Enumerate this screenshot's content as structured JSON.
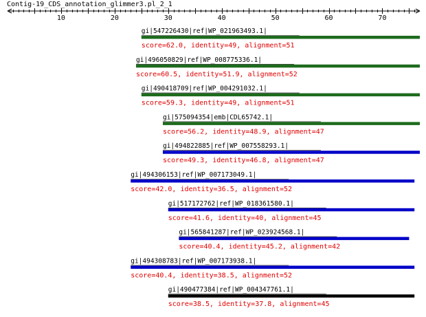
{
  "title": "Contig-19_CDS_annotation_glimmer3.pl_2_1",
  "axis": {
    "min": 0,
    "max": 77,
    "labeled_ticks": [
      10,
      20,
      30,
      40,
      50,
      60,
      70
    ],
    "minor_step": 1
  },
  "colors": {
    "score_text": "#e00000",
    "green": "#1d6b1d",
    "blue": "#0000c8",
    "black": "#000000"
  },
  "hits": [
    {
      "label": "gi|547226430|ref|WP_021963493.1|",
      "score": "score=62.0, identity=49, alignment=51",
      "start": 25,
      "end": 77,
      "color": "green"
    },
    {
      "label": "gi|496050829|ref|WP_008775336.1|",
      "score": "score=60.5, identity=51.9, alignment=52",
      "start": 24,
      "end": 77,
      "color": "green"
    },
    {
      "label": "gi|490418709|ref|WP_004291032.1|",
      "score": "score=59.3, identity=49, alignment=51",
      "start": 25,
      "end": 77,
      "color": "green"
    },
    {
      "label": "gi|575094354|emb|CDL65742.1|",
      "score": "score=56.2, identity=48.9, alignment=47",
      "start": 29,
      "end": 77,
      "color": "green"
    },
    {
      "label": "gi|494822885|ref|WP_007558293.1|",
      "score": "score=49.3, identity=46.8, alignment=47",
      "start": 29,
      "end": 77,
      "color": "blue"
    },
    {
      "label": "gi|494306153|ref|WP_007173049.1|",
      "score": "score=42.0, identity=36.5, alignment=52",
      "start": 23,
      "end": 76,
      "color": "blue"
    },
    {
      "label": "gi|517172762|ref|WP_018361580.1|",
      "score": "score=41.6, identity=40, alignment=45",
      "start": 30,
      "end": 76,
      "color": "blue"
    },
    {
      "label": "gi|565841287|ref|WP_023924568.1|",
      "score": "score=40.4, identity=45.2, alignment=42",
      "start": 32,
      "end": 75,
      "color": "blue"
    },
    {
      "label": "gi|494308783|ref|WP_007173938.1|",
      "score": "score=40.4, identity=38.5, alignment=52",
      "start": 23,
      "end": 76,
      "color": "blue"
    },
    {
      "label": "gi|490477384|ref|WP_004347761.1|",
      "score": "score=38.5, identity=37.8, alignment=45",
      "start": 30,
      "end": 76,
      "color": "black"
    }
  ]
}
